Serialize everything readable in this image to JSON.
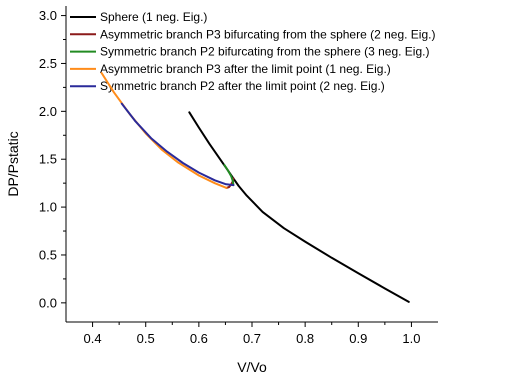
{
  "chart_data": {
    "type": "line",
    "title": "",
    "xlabel": "V/Vo",
    "ylabel": "DP/Pstatic",
    "xlim": [
      0.35,
      1.05
    ],
    "ylim": [
      -0.2,
      3.1
    ],
    "x_ticks": [
      0.4,
      0.5,
      0.6,
      0.7,
      0.8,
      0.9,
      1.0
    ],
    "x_tick_labels": [
      "0.4",
      "0.5",
      "0.6",
      "0.7",
      "0.8",
      "0.9",
      "1.0"
    ],
    "y_ticks": [
      0.0,
      0.5,
      1.0,
      1.5,
      2.0,
      2.5,
      3.0
    ],
    "y_tick_labels": [
      "0.0",
      "0.5",
      "1.0",
      "1.5",
      "2.0",
      "2.5",
      "3.0"
    ],
    "grid": false,
    "legend_position": "top",
    "series": [
      {
        "name": "Sphere (1 neg. Eig.)",
        "color": "#000000",
        "points": [
          [
            0.582,
            1.99
          ],
          [
            0.6,
            1.83
          ],
          [
            0.62,
            1.66
          ],
          [
            0.64,
            1.5
          ],
          [
            0.655,
            1.38
          ],
          [
            0.665,
            1.3
          ],
          [
            0.675,
            1.22
          ],
          [
            0.69,
            1.12
          ],
          [
            0.72,
            0.95
          ],
          [
            0.76,
            0.78
          ],
          [
            0.8,
            0.64
          ],
          [
            0.85,
            0.47
          ],
          [
            0.9,
            0.31
          ],
          [
            0.95,
            0.15
          ],
          [
            0.995,
            0.01
          ]
        ]
      },
      {
        "name": "Asymmetric branch P3 bifurcating from the sphere (2 neg. Eig.)",
        "color": "#8b1a1a",
        "points": [
          [
            0.665,
            1.3
          ],
          [
            0.664,
            1.27
          ],
          [
            0.661,
            1.24
          ],
          [
            0.657,
            1.21
          ],
          [
            0.652,
            1.2
          ]
        ]
      },
      {
        "name": "Symmetric branch P2 bifurcating from the sphere (3 neg. Eig.)",
        "color": "#228b22",
        "points": [
          [
            0.648,
            1.44
          ],
          [
            0.655,
            1.38
          ],
          [
            0.661,
            1.32
          ],
          [
            0.664,
            1.27
          ],
          [
            0.665,
            1.23
          ]
        ]
      },
      {
        "name": "Asymmetric branch P3 after the limit point (1 neg. Eig.)",
        "color": "#ff8c1a",
        "points": [
          [
            0.417,
            2.4
          ],
          [
            0.44,
            2.2
          ],
          [
            0.47,
            1.97
          ],
          [
            0.5,
            1.77
          ],
          [
            0.53,
            1.6
          ],
          [
            0.56,
            1.47
          ],
          [
            0.6,
            1.33
          ],
          [
            0.63,
            1.25
          ],
          [
            0.652,
            1.2
          ]
        ]
      },
      {
        "name": "Symmetric branch P2 after the limit point (2 neg. Eig.)",
        "color": "#2a2a9a",
        "points": [
          [
            0.455,
            2.08
          ],
          [
            0.48,
            1.9
          ],
          [
            0.51,
            1.72
          ],
          [
            0.54,
            1.58
          ],
          [
            0.57,
            1.46
          ],
          [
            0.6,
            1.36
          ],
          [
            0.63,
            1.28
          ],
          [
            0.65,
            1.24
          ],
          [
            0.665,
            1.23
          ]
        ]
      }
    ]
  }
}
